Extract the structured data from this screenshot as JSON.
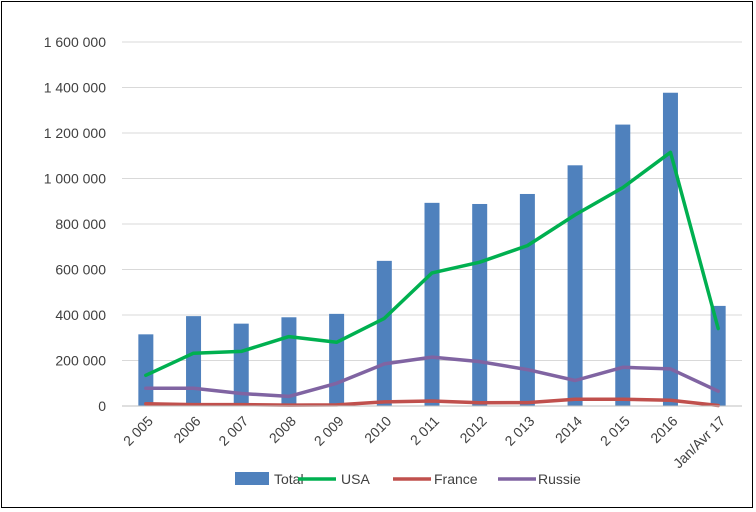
{
  "chart_data": {
    "type": "bar",
    "title": "",
    "xlabel": "",
    "ylabel": "",
    "ylim": [
      0,
      1600000
    ],
    "y_ticks": [
      0,
      200000,
      400000,
      600000,
      800000,
      1000000,
      1200000,
      1400000,
      1600000
    ],
    "y_tick_labels": [
      "0",
      "200 000",
      "400 000",
      "600 000",
      "800 000",
      "1 000 000",
      "1 200 000",
      "1 400 000",
      "1 600 000"
    ],
    "grid": true,
    "legend_position": "bottom",
    "categories": [
      "2 005",
      "2006",
      "2 007",
      "2008",
      "2 009",
      "2010",
      "2 011",
      "2012",
      "2 013",
      "2014",
      "2 015",
      "2016",
      "Jan/Avr 17"
    ],
    "series": [
      {
        "name": "Total",
        "type": "bar",
        "color": "#4f81bd",
        "values": [
          315000,
          395000,
          362000,
          390000,
          405000,
          638000,
          893000,
          888000,
          932000,
          1058000,
          1237000,
          1377000,
          440000
        ]
      },
      {
        "name": "USA",
        "type": "line",
        "color": "#00b050",
        "values": [
          135000,
          232000,
          240000,
          305000,
          280000,
          385000,
          585000,
          632000,
          705000,
          840000,
          960000,
          1115000,
          340000
        ]
      },
      {
        "name": "France",
        "type": "line",
        "color": "#c0504d",
        "values": [
          10000,
          6000,
          6000,
          4000,
          5000,
          18000,
          22000,
          14000,
          15000,
          30000,
          30000,
          25000,
          2000
        ]
      },
      {
        "name": "Russie",
        "type": "line",
        "color": "#8064a2",
        "values": [
          78000,
          78000,
          55000,
          42000,
          100000,
          185000,
          215000,
          195000,
          160000,
          112000,
          170000,
          163000,
          65000
        ]
      }
    ]
  }
}
